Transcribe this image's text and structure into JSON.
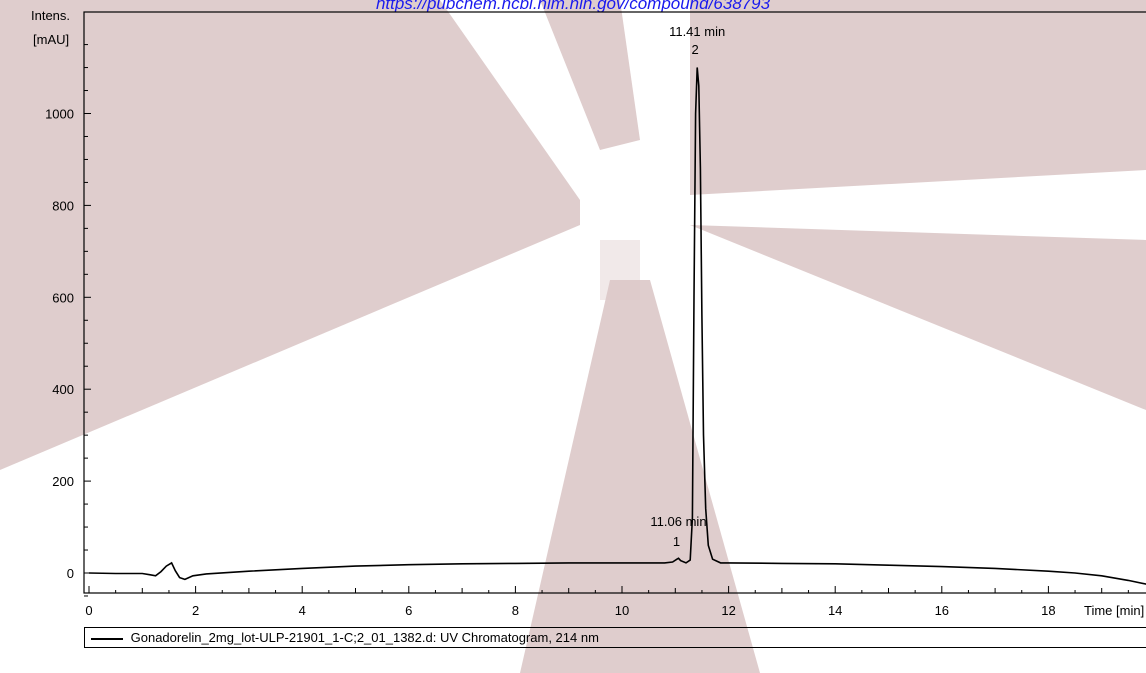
{
  "header": {
    "url_text": "https://pubchem.ncbi.nlm.nih.gov/compound/638793"
  },
  "colors": {
    "watermark": "#dcc8c8",
    "trace": "#000000",
    "url": "#1a1aee"
  },
  "legend": {
    "label": "Gonadorelin_2mg_lot-ULP-21901_1-C;2_01_1382.d: UV Chromatogram, 214 nm"
  },
  "chart_data": {
    "type": "line",
    "title": "",
    "ylabel_line1": "Intens.",
    "ylabel_line2": "[mAU]",
    "xlabel": "Time [min]",
    "xlim": [
      0,
      20
    ],
    "ylim": [
      -80,
      1200
    ],
    "x_ticks": [
      "0",
      "2",
      "4",
      "6",
      "8",
      "10",
      "12",
      "14",
      "16",
      "18"
    ],
    "y_ticks": [
      "0",
      "200",
      "400",
      "600",
      "800",
      "1000"
    ],
    "peaks": [
      {
        "number": "1",
        "label": "11.06 min",
        "x": 11.06,
        "y": 32
      },
      {
        "number": "2",
        "label": "11.41 min",
        "x": 11.41,
        "y": 1100
      }
    ],
    "series": [
      {
        "name": "",
        "points": [
          [
            0.0,
            0
          ],
          [
            0.5,
            -1
          ],
          [
            1.0,
            -1
          ],
          [
            1.15,
            -4
          ],
          [
            1.25,
            -6
          ],
          [
            1.35,
            3
          ],
          [
            1.45,
            15
          ],
          [
            1.55,
            22
          ],
          [
            1.62,
            5
          ],
          [
            1.7,
            -10
          ],
          [
            1.8,
            -14
          ],
          [
            1.95,
            -6
          ],
          [
            2.2,
            -2
          ],
          [
            3.0,
            4
          ],
          [
            4.0,
            10
          ],
          [
            5.0,
            15
          ],
          [
            6.0,
            18
          ],
          [
            7.0,
            20
          ],
          [
            8.0,
            21
          ],
          [
            9.0,
            22
          ],
          [
            10.0,
            22
          ],
          [
            10.8,
            22
          ],
          [
            10.95,
            24
          ],
          [
            11.03,
            30
          ],
          [
            11.06,
            32
          ],
          [
            11.1,
            27
          ],
          [
            11.2,
            22
          ],
          [
            11.28,
            28
          ],
          [
            11.32,
            120
          ],
          [
            11.35,
            600
          ],
          [
            11.38,
            1000
          ],
          [
            11.41,
            1100
          ],
          [
            11.44,
            1060
          ],
          [
            11.47,
            880
          ],
          [
            11.5,
            560
          ],
          [
            11.53,
            300
          ],
          [
            11.57,
            140
          ],
          [
            11.62,
            60
          ],
          [
            11.7,
            30
          ],
          [
            11.85,
            22
          ],
          [
            12.0,
            22
          ],
          [
            13.0,
            21
          ],
          [
            14.0,
            20
          ],
          [
            15.0,
            17
          ],
          [
            16.0,
            14
          ],
          [
            17.0,
            10
          ],
          [
            18.0,
            4
          ],
          [
            18.5,
            0
          ],
          [
            19.0,
            -6
          ],
          [
            19.5,
            -16
          ],
          [
            20.0,
            -28
          ]
        ]
      }
    ]
  }
}
